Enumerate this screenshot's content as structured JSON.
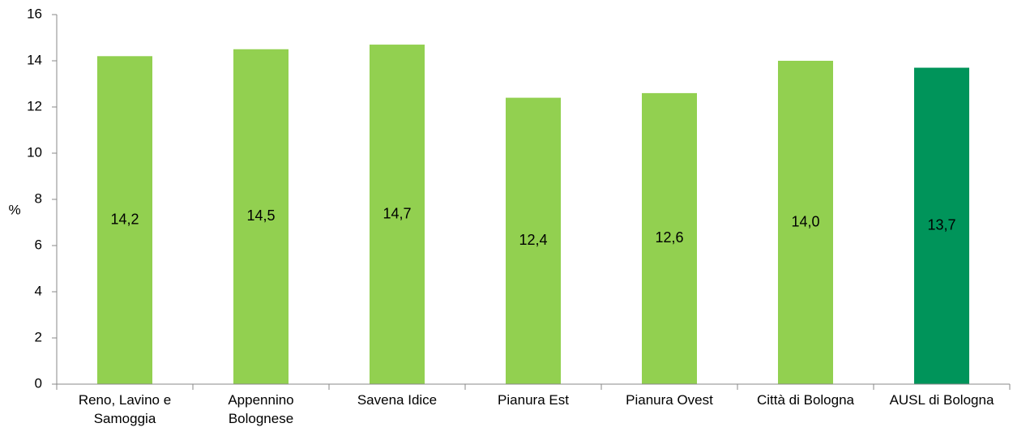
{
  "chart_data": {
    "type": "bar",
    "title": "",
    "xlabel": "",
    "ylabel": "%",
    "ylim": [
      0,
      16
    ],
    "yticks": [
      "0",
      "2",
      "4",
      "6",
      "8",
      "10",
      "12",
      "14",
      "16"
    ],
    "categories": [
      [
        "Reno, Lavino e",
        "Samoggia"
      ],
      [
        "Appennino",
        "Bolognese"
      ],
      [
        "Savena Idice"
      ],
      [
        "Pianura Est"
      ],
      [
        "Pianura Ovest"
      ],
      [
        "Città di Bologna"
      ],
      [
        "AUSL di Bologna"
      ]
    ],
    "values": [
      14.2,
      14.5,
      14.7,
      12.4,
      12.6,
      14.0,
      13.7
    ],
    "data_labels": [
      "14,2",
      "14,5",
      "14,7",
      "12,4",
      "12,6",
      "14,0",
      "13,7"
    ],
    "colors": [
      "#92d050",
      "#92d050",
      "#92d050",
      "#92d050",
      "#92d050",
      "#92d050",
      "#00945a"
    ],
    "grid": false,
    "legend": "none"
  }
}
